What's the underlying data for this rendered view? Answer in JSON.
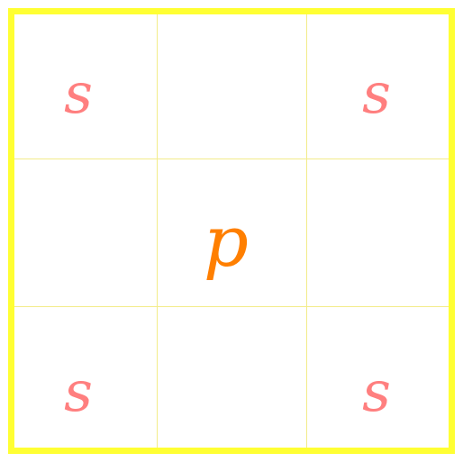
{
  "grid": {
    "rows": 3,
    "cols": 3,
    "border_color": "#ffff33",
    "line_color": "#f3ec8a",
    "cells": [
      {
        "row": 0,
        "col": 0,
        "label": "s",
        "color": "#ff7f7f",
        "name": "cell-s-top-left"
      },
      {
        "row": 0,
        "col": 2,
        "label": "s",
        "color": "#ff7f7f",
        "name": "cell-s-top-right"
      },
      {
        "row": 1,
        "col": 1,
        "label": "p",
        "color": "#ff7f00",
        "name": "cell-p-center"
      },
      {
        "row": 2,
        "col": 0,
        "label": "s",
        "color": "#ff7f7f",
        "name": "cell-s-bottom-left"
      },
      {
        "row": 2,
        "col": 2,
        "label": "s",
        "color": "#ff7f7f",
        "name": "cell-s-bottom-right"
      }
    ]
  }
}
